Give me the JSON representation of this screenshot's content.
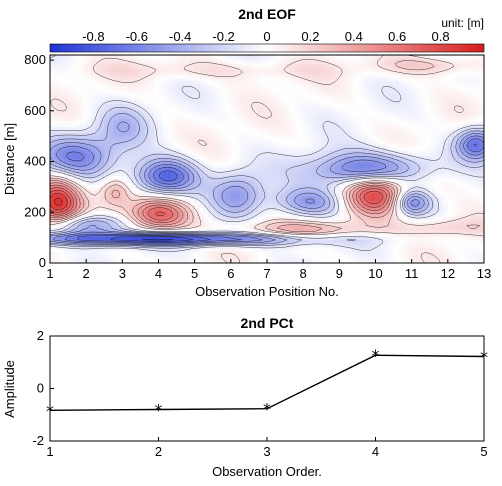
{
  "chart_data": [
    {
      "type": "heatmap",
      "title": "2nd EOF",
      "xlabel": "Observation Position No.",
      "ylabel": "Distance [m]",
      "x_ticks": [
        1,
        2,
        3,
        4,
        5,
        6,
        7,
        8,
        9,
        10,
        11,
        12,
        13
      ],
      "y_ticks": [
        0,
        200,
        400,
        600,
        800
      ],
      "xlim": [
        1,
        13
      ],
      "ylim": [
        0,
        820
      ],
      "colorbar": {
        "unit_label": "unit: [m]",
        "ticks": [
          "-0.8",
          "-0.6",
          "-0.4",
          "-0.2",
          "0",
          "0.2",
          "0.4",
          "0.6",
          "0.8"
        ],
        "range": [
          -1,
          1
        ],
        "colors": [
          "#1f33d6",
          "#ffffff",
          "#d81c1c"
        ]
      },
      "features": [
        {
          "x": 1.2,
          "y": 240,
          "sx": 0.45,
          "sy": 70,
          "v": 0.9
        },
        {
          "x": 4.0,
          "y": 190,
          "sx": 0.6,
          "sy": 45,
          "v": 0.75
        },
        {
          "x": 10.0,
          "y": 270,
          "sx": 0.6,
          "sy": 60,
          "v": 0.85
        },
        {
          "x": 2.8,
          "y": 280,
          "sx": 0.3,
          "sy": 40,
          "v": 0.35
        },
        {
          "x": 8.2,
          "y": 130,
          "sx": 1.4,
          "sy": 25,
          "v": 0.35
        },
        {
          "x": 12.0,
          "y": 140,
          "sx": 0.8,
          "sy": 25,
          "v": 0.2
        },
        {
          "x": 10.5,
          "y": 320,
          "sx": 1.2,
          "sy": 40,
          "v": 0.2
        },
        {
          "x": 4.2,
          "y": 340,
          "sx": 0.6,
          "sy": 50,
          "v": -0.8
        },
        {
          "x": 9.8,
          "y": 360,
          "sx": 1.1,
          "sy": 50,
          "v": -0.85
        },
        {
          "x": 1.7,
          "y": 420,
          "sx": 0.8,
          "sy": 60,
          "v": -0.55
        },
        {
          "x": 12.8,
          "y": 470,
          "sx": 0.4,
          "sy": 45,
          "v": -0.7
        },
        {
          "x": 11.0,
          "y": 240,
          "sx": 0.35,
          "sy": 35,
          "v": -0.6
        },
        {
          "x": 4.0,
          "y": 95,
          "sx": 3.0,
          "sy": 18,
          "v": -0.9
        },
        {
          "x": 2.0,
          "y": 150,
          "sx": 0.8,
          "sy": 30,
          "v": -0.55
        },
        {
          "x": 6.2,
          "y": 270,
          "sx": 0.5,
          "sy": 60,
          "v": -0.45
        },
        {
          "x": 8.2,
          "y": 240,
          "sx": 0.7,
          "sy": 40,
          "v": -0.5
        },
        {
          "x": 3.0,
          "y": 540,
          "sx": 0.5,
          "sy": 60,
          "v": -0.3
        },
        {
          "x": 5.5,
          "y": 760,
          "sx": 2.5,
          "sy": 25,
          "v": 0.15
        },
        {
          "x": 11.5,
          "y": 780,
          "sx": 1.0,
          "sy": 25,
          "v": 0.25
        }
      ]
    },
    {
      "type": "line",
      "title": "2nd PCt",
      "xlabel": "Observation Order.",
      "ylabel": "Amplitude",
      "x": [
        1,
        2,
        3,
        4,
        5
      ],
      "y": [
        -0.83,
        -0.8,
        -0.77,
        1.27,
        1.22
      ],
      "xlim": [
        1,
        5
      ],
      "ylim": [
        -2,
        2
      ],
      "y_ticks": [
        -2,
        0,
        2
      ],
      "marker": "*",
      "color": "#000000"
    }
  ]
}
